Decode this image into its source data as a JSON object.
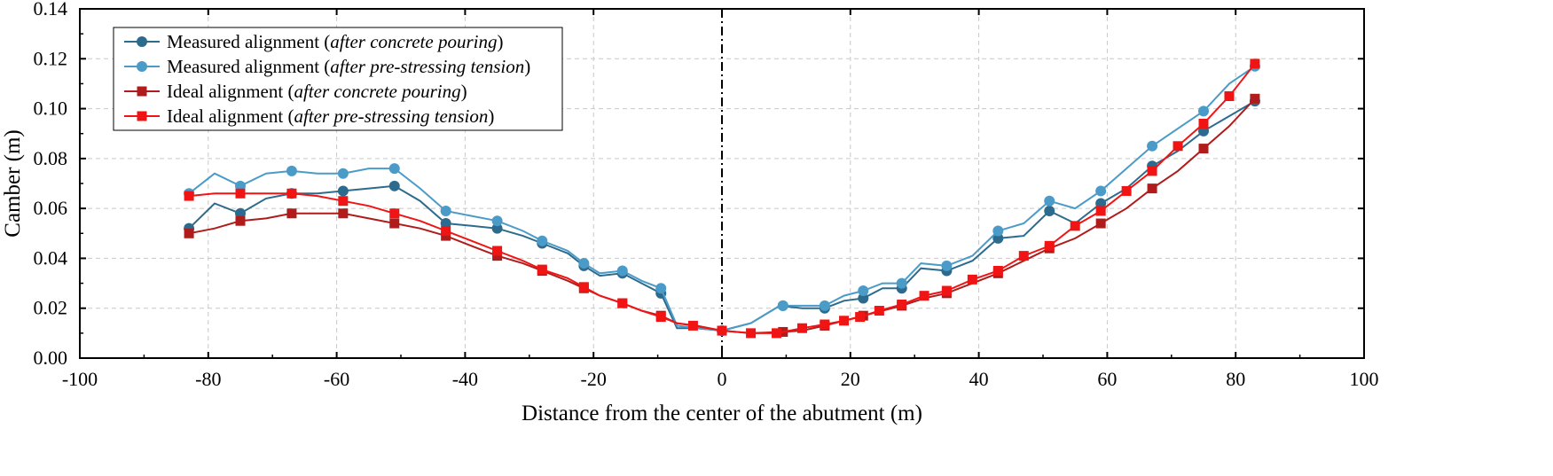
{
  "chart_data": {
    "type": "line",
    "xlabel": "Distance from the center of the abutment (m)",
    "ylabel": "Camber (m)",
    "xlim": [
      -100,
      100
    ],
    "ylim": [
      0,
      0.14
    ],
    "xticks": [
      -100,
      -80,
      -60,
      -40,
      -20,
      0,
      20,
      40,
      60,
      80,
      100
    ],
    "yticks": [
      0.0,
      0.02,
      0.04,
      0.06,
      0.08,
      0.1,
      0.12,
      0.14
    ],
    "ytick_labels": [
      "0.00",
      "0.02",
      "0.04",
      "0.06",
      "0.08",
      "0.10",
      "0.12",
      "0.14"
    ],
    "grid": true,
    "reference_line_x": 0,
    "legend_position": "top-left",
    "series": [
      {
        "name_plain": "Measured alignment (",
        "name_italic": "after concrete pouring",
        "name_close": ")",
        "color": "#2d6b8e",
        "marker": "circle",
        "line": [
          [
            -83,
            0.052
          ],
          [
            -79,
            0.062
          ],
          [
            -75,
            0.058
          ],
          [
            -71,
            0.064
          ],
          [
            -67,
            0.066
          ],
          [
            -63,
            0.066
          ],
          [
            -59,
            0.067
          ],
          [
            -55,
            0.068
          ],
          [
            -51,
            0.069
          ],
          [
            -47,
            0.063
          ],
          [
            -43,
            0.054
          ],
          [
            -39,
            0.053
          ],
          [
            -35,
            0.052
          ],
          [
            -31,
            0.049
          ],
          [
            -28,
            0.046
          ],
          [
            -24,
            0.042
          ],
          [
            -21.5,
            0.037
          ],
          [
            -19,
            0.033
          ],
          [
            -15.5,
            0.034
          ],
          [
            -12.5,
            0.03
          ],
          [
            -9.5,
            0.026
          ],
          [
            -7,
            0.012
          ],
          [
            -4,
            0.012
          ],
          [
            0,
            0.011
          ],
          [
            4.5,
            0.014
          ],
          [
            9,
            0.021
          ],
          [
            12.5,
            0.02
          ],
          [
            16,
            0.02
          ],
          [
            19,
            0.023
          ],
          [
            22,
            0.024
          ],
          [
            25,
            0.028
          ],
          [
            28,
            0.028
          ],
          [
            31,
            0.036
          ],
          [
            35,
            0.035
          ],
          [
            39,
            0.039
          ],
          [
            43,
            0.048
          ],
          [
            47,
            0.049
          ],
          [
            51,
            0.059
          ],
          [
            55,
            0.054
          ],
          [
            59,
            0.062
          ],
          [
            63,
            0.068
          ],
          [
            67,
            0.077
          ],
          [
            71,
            0.083
          ],
          [
            75,
            0.091
          ],
          [
            79,
            0.097
          ],
          [
            83,
            0.103
          ]
        ],
        "markers": [
          [
            -83,
            0.052
          ],
          [
            -75,
            0.058
          ],
          [
            -67,
            0.066
          ],
          [
            -59,
            0.067
          ],
          [
            -51,
            0.069
          ],
          [
            -43,
            0.054
          ],
          [
            -35,
            0.052
          ],
          [
            -28,
            0.046
          ],
          [
            -21.5,
            0.037
          ],
          [
            -15.5,
            0.034
          ],
          [
            -9.5,
            0.026
          ],
          [
            0,
            0.011
          ],
          [
            9.5,
            0.021
          ],
          [
            16,
            0.02
          ],
          [
            22,
            0.024
          ],
          [
            28,
            0.028
          ],
          [
            35,
            0.035
          ],
          [
            43,
            0.048
          ],
          [
            51,
            0.059
          ],
          [
            59,
            0.062
          ],
          [
            67,
            0.077
          ],
          [
            75,
            0.091
          ],
          [
            83,
            0.103
          ]
        ]
      },
      {
        "name_plain": "Measured alignment (",
        "name_italic": "after pre-stressing tension",
        "name_close": ")",
        "color": "#4b9bc9",
        "marker": "circle",
        "line": [
          [
            -83,
            0.066
          ],
          [
            -79,
            0.074
          ],
          [
            -75,
            0.069
          ],
          [
            -71,
            0.074
          ],
          [
            -67,
            0.075
          ],
          [
            -63,
            0.074
          ],
          [
            -59,
            0.074
          ],
          [
            -55,
            0.076
          ],
          [
            -51,
            0.076
          ],
          [
            -47,
            0.068
          ],
          [
            -43,
            0.059
          ],
          [
            -39,
            0.057
          ],
          [
            -35,
            0.055
          ],
          [
            -31,
            0.051
          ],
          [
            -28,
            0.047
          ],
          [
            -24,
            0.043
          ],
          [
            -21.5,
            0.038
          ],
          [
            -19,
            0.034
          ],
          [
            -15.5,
            0.035
          ],
          [
            -12.5,
            0.031
          ],
          [
            -9.5,
            0.028
          ],
          [
            -7,
            0.013
          ],
          [
            -4,
            0.012
          ],
          [
            0,
            0.011
          ],
          [
            4.5,
            0.014
          ],
          [
            9,
            0.021
          ],
          [
            12.5,
            0.021
          ],
          [
            16,
            0.021
          ],
          [
            19,
            0.025
          ],
          [
            22,
            0.027
          ],
          [
            25,
            0.03
          ],
          [
            28,
            0.03
          ],
          [
            31,
            0.038
          ],
          [
            35,
            0.037
          ],
          [
            39,
            0.041
          ],
          [
            43,
            0.051
          ],
          [
            47,
            0.054
          ],
          [
            51,
            0.063
          ],
          [
            55,
            0.06
          ],
          [
            59,
            0.067
          ],
          [
            63,
            0.076
          ],
          [
            67,
            0.085
          ],
          [
            71,
            0.092
          ],
          [
            75,
            0.099
          ],
          [
            79,
            0.11
          ],
          [
            83,
            0.117
          ]
        ],
        "markers": [
          [
            -83,
            0.066
          ],
          [
            -75,
            0.069
          ],
          [
            -67,
            0.075
          ],
          [
            -59,
            0.074
          ],
          [
            -51,
            0.076
          ],
          [
            -43,
            0.059
          ],
          [
            -35,
            0.055
          ],
          [
            -28,
            0.047
          ],
          [
            -21.5,
            0.038
          ],
          [
            -15.5,
            0.035
          ],
          [
            -9.5,
            0.028
          ],
          [
            0,
            0.011
          ],
          [
            9.5,
            0.021
          ],
          [
            16,
            0.021
          ],
          [
            22,
            0.027
          ],
          [
            28,
            0.03
          ],
          [
            35,
            0.037
          ],
          [
            43,
            0.051
          ],
          [
            51,
            0.063
          ],
          [
            59,
            0.067
          ],
          [
            67,
            0.085
          ],
          [
            75,
            0.099
          ],
          [
            83,
            0.117
          ]
        ]
      },
      {
        "name_plain": "Ideal alignment (",
        "name_italic": "after concrete pouring",
        "name_close": ")",
        "color": "#b01b1b",
        "marker": "square",
        "line": [
          [
            -83,
            0.05
          ],
          [
            -79,
            0.052
          ],
          [
            -75,
            0.055
          ],
          [
            -71,
            0.056
          ],
          [
            -67,
            0.058
          ],
          [
            -63,
            0.058
          ],
          [
            -59,
            0.058
          ],
          [
            -55,
            0.056
          ],
          [
            -51,
            0.054
          ],
          [
            -47,
            0.052
          ],
          [
            -43,
            0.049
          ],
          [
            -39,
            0.045
          ],
          [
            -35,
            0.041
          ],
          [
            -31,
            0.038
          ],
          [
            -28,
            0.035
          ],
          [
            -24,
            0.031
          ],
          [
            -21.5,
            0.028
          ],
          [
            -19,
            0.025
          ],
          [
            -15.5,
            0.022
          ],
          [
            -12.5,
            0.019
          ],
          [
            -9.5,
            0.017
          ],
          [
            -7,
            0.014
          ],
          [
            -4,
            0.013
          ],
          [
            0,
            0.011
          ],
          [
            4.5,
            0.01
          ],
          [
            9.5,
            0.0105
          ],
          [
            12.5,
            0.011
          ],
          [
            16,
            0.013
          ],
          [
            19,
            0.015
          ],
          [
            22,
            0.017
          ],
          [
            25,
            0.019
          ],
          [
            28,
            0.021
          ],
          [
            31.5,
            0.024
          ],
          [
            35,
            0.026
          ],
          [
            39,
            0.03
          ],
          [
            43,
            0.034
          ],
          [
            47,
            0.039
          ],
          [
            51,
            0.044
          ],
          [
            55,
            0.048
          ],
          [
            59,
            0.054
          ],
          [
            63,
            0.06
          ],
          [
            67,
            0.068
          ],
          [
            71,
            0.075
          ],
          [
            75,
            0.084
          ],
          [
            79,
            0.093
          ],
          [
            83,
            0.104
          ]
        ],
        "markers": [
          [
            -83,
            0.05
          ],
          [
            -75,
            0.055
          ],
          [
            -67,
            0.058
          ],
          [
            -59,
            0.058
          ],
          [
            -51,
            0.054
          ],
          [
            -43,
            0.049
          ],
          [
            -35,
            0.041
          ],
          [
            -28,
            0.035
          ],
          [
            -21.5,
            0.028
          ],
          [
            -15.5,
            0.022
          ],
          [
            -9.5,
            0.017
          ],
          [
            0,
            0.011
          ],
          [
            9.5,
            0.0105
          ],
          [
            16,
            0.013
          ],
          [
            22,
            0.017
          ],
          [
            28,
            0.021
          ],
          [
            35,
            0.026
          ],
          [
            43,
            0.034
          ],
          [
            51,
            0.044
          ],
          [
            59,
            0.054
          ],
          [
            67,
            0.068
          ],
          [
            75,
            0.084
          ],
          [
            83,
            0.104
          ]
        ]
      },
      {
        "name_plain": "Ideal alignment (",
        "name_italic": "after pre-stressing tension",
        "name_close": ")",
        "color": "#f01414",
        "marker": "square",
        "line": [
          [
            -83,
            0.065
          ],
          [
            -79,
            0.066
          ],
          [
            -75,
            0.066
          ],
          [
            -71,
            0.066
          ],
          [
            -67,
            0.066
          ],
          [
            -63,
            0.065
          ],
          [
            -59,
            0.063
          ],
          [
            -55,
            0.061
          ],
          [
            -51,
            0.058
          ],
          [
            -47,
            0.055
          ],
          [
            -43,
            0.051
          ],
          [
            -39,
            0.047
          ],
          [
            -35,
            0.043
          ],
          [
            -31,
            0.039
          ],
          [
            -28,
            0.0355
          ],
          [
            -24,
            0.032
          ],
          [
            -21.5,
            0.0285
          ],
          [
            -19,
            0.025
          ],
          [
            -15.5,
            0.022
          ],
          [
            -12.5,
            0.019
          ],
          [
            -9.5,
            0.0165
          ],
          [
            -7,
            0.014
          ],
          [
            -4.5,
            0.013
          ],
          [
            0,
            0.011
          ],
          [
            4.5,
            0.01
          ],
          [
            8.5,
            0.01
          ],
          [
            12.5,
            0.012
          ],
          [
            16,
            0.0135
          ],
          [
            19,
            0.015
          ],
          [
            21.5,
            0.0165
          ],
          [
            24.5,
            0.019
          ],
          [
            28,
            0.0215
          ],
          [
            31.5,
            0.025
          ],
          [
            35,
            0.027
          ],
          [
            39,
            0.0315
          ],
          [
            43,
            0.035
          ],
          [
            47,
            0.041
          ],
          [
            51,
            0.045
          ],
          [
            55,
            0.053
          ],
          [
            59,
            0.059
          ],
          [
            63,
            0.067
          ],
          [
            67,
            0.075
          ],
          [
            71,
            0.085
          ],
          [
            75,
            0.094
          ],
          [
            79,
            0.105
          ],
          [
            83,
            0.118
          ]
        ],
        "markers": [
          [
            -83,
            0.065
          ],
          [
            -75,
            0.066
          ],
          [
            -67,
            0.066
          ],
          [
            -59,
            0.063
          ],
          [
            -51,
            0.058
          ],
          [
            -43,
            0.051
          ],
          [
            -35,
            0.043
          ],
          [
            -28,
            0.0355
          ],
          [
            -21.5,
            0.0285
          ],
          [
            -15.5,
            0.022
          ],
          [
            -9.5,
            0.0165
          ],
          [
            -4.5,
            0.013
          ],
          [
            0,
            0.011
          ],
          [
            4.5,
            0.01
          ],
          [
            8.5,
            0.01
          ],
          [
            12.5,
            0.012
          ],
          [
            16,
            0.0135
          ],
          [
            19,
            0.015
          ],
          [
            21.5,
            0.0165
          ],
          [
            24.5,
            0.019
          ],
          [
            28,
            0.0215
          ],
          [
            31.5,
            0.025
          ],
          [
            35,
            0.027
          ],
          [
            39,
            0.0315
          ],
          [
            43,
            0.035
          ],
          [
            47,
            0.041
          ],
          [
            51,
            0.045
          ],
          [
            55,
            0.053
          ],
          [
            59,
            0.059
          ],
          [
            63,
            0.067
          ],
          [
            67,
            0.075
          ],
          [
            71,
            0.085
          ],
          [
            75,
            0.094
          ],
          [
            79,
            0.105
          ],
          [
            83,
            0.118
          ]
        ]
      }
    ]
  }
}
